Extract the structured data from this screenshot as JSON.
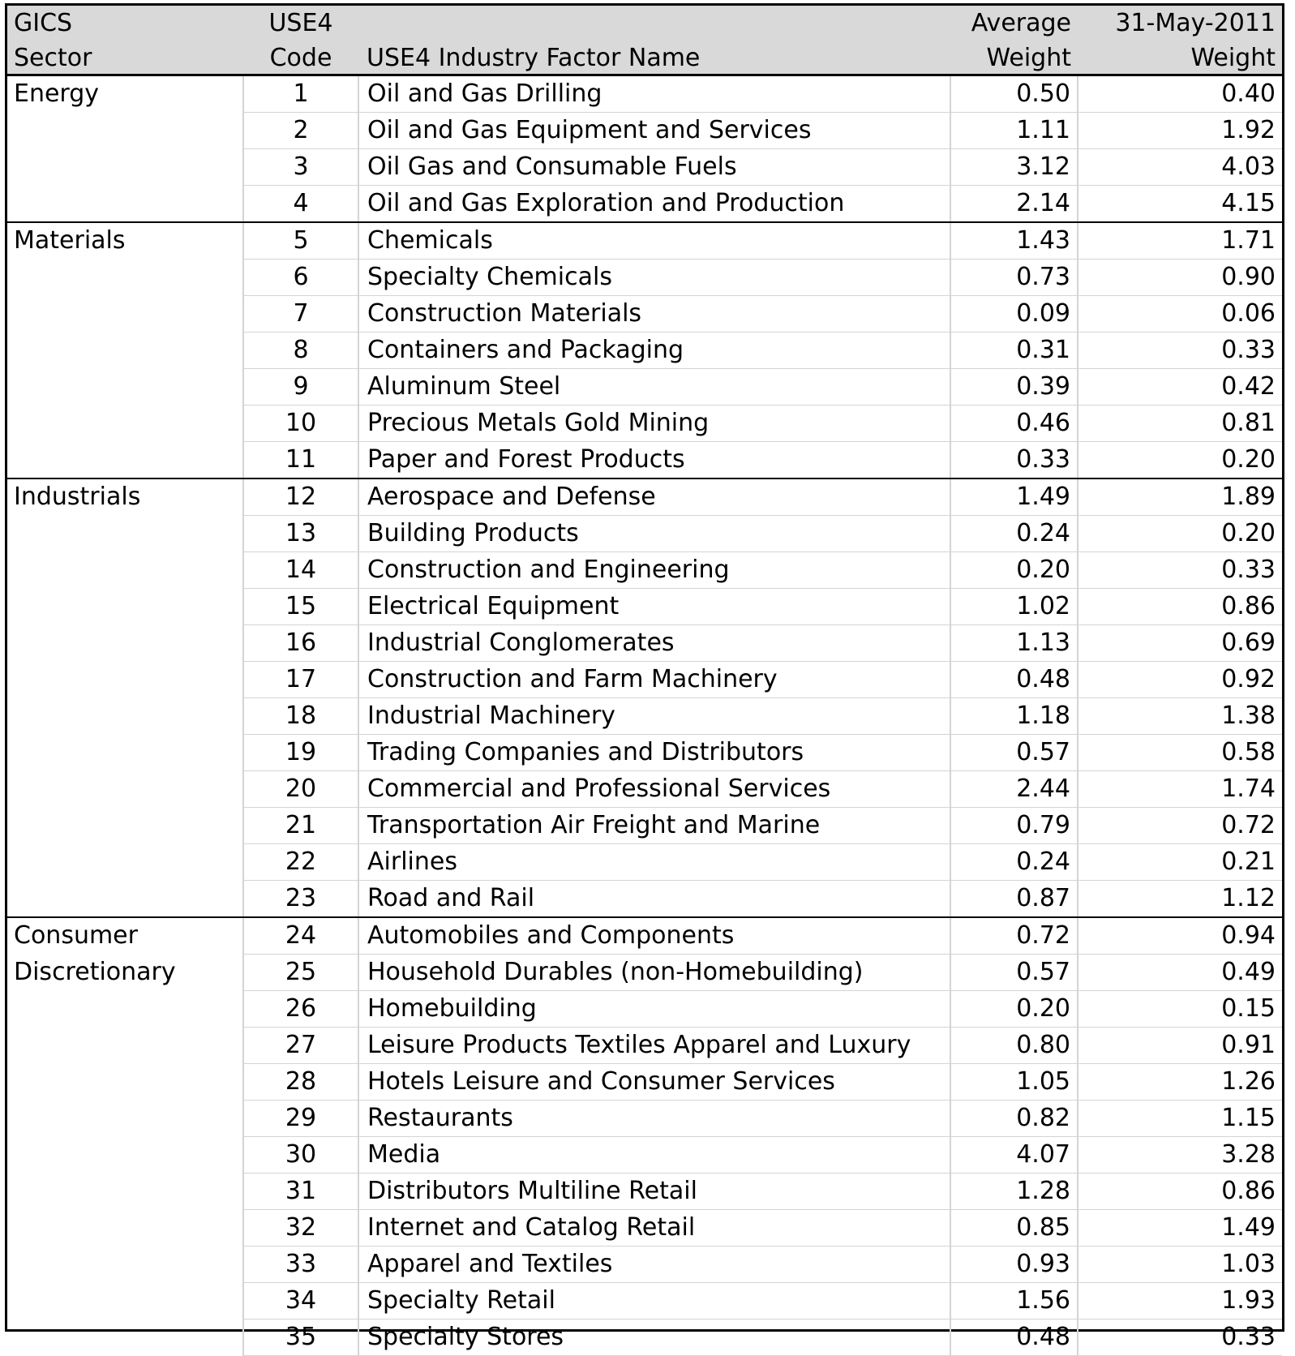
{
  "header": {
    "sector_line1": "GICS",
    "sector_line2": "Sector",
    "code_line1": "USE4",
    "code_line2": "Code",
    "name_label": "USE4 Industry Factor Name",
    "avg_line1": "Average",
    "avg_line2": "Weight",
    "date_line1": "31-May-2011",
    "date_line2": "Weight"
  },
  "rows": [
    {
      "sector": "Energy",
      "code": "1",
      "name": "Oil and Gas Drilling",
      "avg": "0.50",
      "may": "0.40"
    },
    {
      "sector": "",
      "code": "2",
      "name": "Oil and Gas Equipment and Services",
      "avg": "1.11",
      "may": "1.92"
    },
    {
      "sector": "",
      "code": "3",
      "name": "Oil Gas and Consumable Fuels",
      "avg": "3.12",
      "may": "4.03"
    },
    {
      "sector": "",
      "code": "4",
      "name": "Oil and Gas Exploration and Production",
      "avg": "2.14",
      "may": "4.15"
    },
    {
      "sector": "Materials",
      "code": "5",
      "name": "Chemicals",
      "avg": "1.43",
      "may": "1.71"
    },
    {
      "sector": "",
      "code": "6",
      "name": "Specialty Chemicals",
      "avg": "0.73",
      "may": "0.90"
    },
    {
      "sector": "",
      "code": "7",
      "name": "Construction Materials",
      "avg": "0.09",
      "may": "0.06"
    },
    {
      "sector": "",
      "code": "8",
      "name": "Containers and Packaging",
      "avg": "0.31",
      "may": "0.33"
    },
    {
      "sector": "",
      "code": "9",
      "name": "Aluminum Steel",
      "avg": "0.39",
      "may": "0.42"
    },
    {
      "sector": "",
      "code": "10",
      "name": "Precious Metals Gold Mining",
      "avg": "0.46",
      "may": "0.81"
    },
    {
      "sector": "",
      "code": "11",
      "name": "Paper and Forest Products",
      "avg": "0.33",
      "may": "0.20"
    },
    {
      "sector": "Industrials",
      "code": "12",
      "name": "Aerospace and Defense",
      "avg": "1.49",
      "may": "1.89"
    },
    {
      "sector": "",
      "code": "13",
      "name": "Building Products",
      "avg": "0.24",
      "may": "0.20"
    },
    {
      "sector": "",
      "code": "14",
      "name": "Construction and Engineering",
      "avg": "0.20",
      "may": "0.33"
    },
    {
      "sector": "",
      "code": "15",
      "name": "Electrical Equipment",
      "avg": "1.02",
      "may": "0.86"
    },
    {
      "sector": "",
      "code": "16",
      "name": "Industrial Conglomerates",
      "avg": "1.13",
      "may": "0.69"
    },
    {
      "sector": "",
      "code": "17",
      "name": "Construction and Farm Machinery",
      "avg": "0.48",
      "may": "0.92"
    },
    {
      "sector": "",
      "code": "18",
      "name": "Industrial Machinery",
      "avg": "1.18",
      "may": "1.38"
    },
    {
      "sector": "",
      "code": "19",
      "name": "Trading Companies and Distributors",
      "avg": "0.57",
      "may": "0.58"
    },
    {
      "sector": "",
      "code": "20",
      "name": "Commercial and Professional Services",
      "avg": "2.44",
      "may": "1.74"
    },
    {
      "sector": "",
      "code": "21",
      "name": "Transportation Air Freight and Marine",
      "avg": "0.79",
      "may": "0.72"
    },
    {
      "sector": "",
      "code": "22",
      "name": "Airlines",
      "avg": "0.24",
      "may": "0.21"
    },
    {
      "sector": "",
      "code": "23",
      "name": "Road and Rail",
      "avg": "0.87",
      "may": "1.12"
    },
    {
      "sector": "Consumer",
      "code": "24",
      "name": "Automobiles and Components",
      "avg": "0.72",
      "may": "0.94"
    },
    {
      "sector": "Discretionary",
      "code": "25",
      "name": "Household Durables (non-Homebuilding)",
      "avg": "0.57",
      "may": "0.49"
    },
    {
      "sector": "",
      "code": "26",
      "name": "Homebuilding",
      "avg": "0.20",
      "may": "0.15"
    },
    {
      "sector": "",
      "code": "27",
      "name": "Leisure Products Textiles Apparel and Luxury",
      "avg": "0.80",
      "may": "0.91"
    },
    {
      "sector": "",
      "code": "28",
      "name": "Hotels Leisure and Consumer Services",
      "avg": "1.05",
      "may": "1.26"
    },
    {
      "sector": "",
      "code": "29",
      "name": "Restaurants",
      "avg": "0.82",
      "may": "1.15"
    },
    {
      "sector": "",
      "code": "30",
      "name": "Media",
      "avg": "4.07",
      "may": "3.28"
    },
    {
      "sector": "",
      "code": "31",
      "name": "Distributors Multiline Retail",
      "avg": "1.28",
      "may": "0.86"
    },
    {
      "sector": "",
      "code": "32",
      "name": "Internet and Catalog Retail",
      "avg": "0.85",
      "may": "1.49"
    },
    {
      "sector": "",
      "code": "33",
      "name": "Apparel and Textiles",
      "avg": "0.93",
      "may": "1.03"
    },
    {
      "sector": "",
      "code": "34",
      "name": "Specialty Retail",
      "avg": "1.56",
      "may": "1.93"
    },
    {
      "sector": "",
      "code": "35",
      "name": "Specialty Stores",
      "avg": "0.48",
      "may": "0.33"
    }
  ]
}
